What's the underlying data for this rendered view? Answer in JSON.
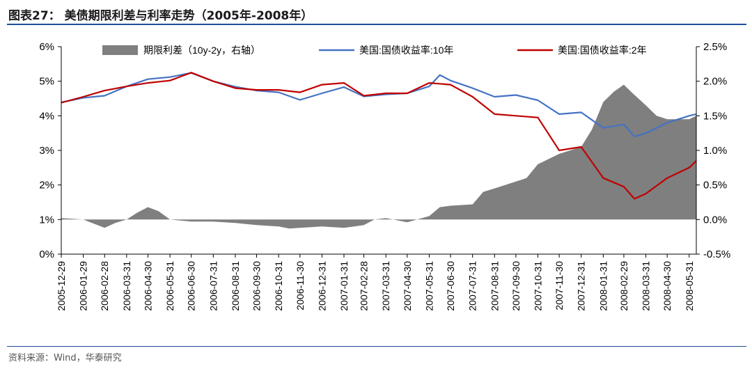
{
  "header": {
    "title": "图表27：  美债期限利差与利率走势（2005年-2008年）"
  },
  "footer": {
    "source": "资料来源：Wind，华泰研究"
  },
  "chart_data": {
    "type": "line",
    "left_axis": {
      "ticks": [
        "0%",
        "1%",
        "2%",
        "3%",
        "4%",
        "5%",
        "6%"
      ],
      "min": 0,
      "max": 6
    },
    "right_axis": {
      "ticks": [
        "-0.5%",
        "0.0%",
        "0.5%",
        "1.0%",
        "1.5%",
        "2.0%",
        "2.5%"
      ],
      "min": -0.5,
      "max": 2.5
    },
    "x_min": "2005-12-29",
    "x_max": "2008-06-10",
    "x_ticks": [
      "2005-12-29",
      "2006-01-29",
      "2006-02-28",
      "2006-03-31",
      "2006-04-30",
      "2006-05-31",
      "2006-06-30",
      "2006-07-31",
      "2006-08-31",
      "2006-09-30",
      "2006-10-31",
      "2006-11-30",
      "2006-12-31",
      "2007-01-31",
      "2007-02-28",
      "2007-03-31",
      "2007-04-30",
      "2007-05-31",
      "2007-06-30",
      "2007-07-31",
      "2007-08-31",
      "2007-09-30",
      "2007-10-31",
      "2007-11-30",
      "2007-12-31",
      "2008-01-31",
      "2008-02-29",
      "2008-03-31",
      "2008-04-30",
      "2008-05-31"
    ],
    "legend_placement": "top",
    "grid": false,
    "series": [
      {
        "name": "期限利差（10y-2y，右轴）",
        "kind": "area",
        "axis": "right",
        "color": "#7f7f7f",
        "x": [
          "2005-12-29",
          "2006-01-29",
          "2006-02-28",
          "2006-03-15",
          "2006-03-31",
          "2006-04-15",
          "2006-04-30",
          "2006-05-15",
          "2006-05-31",
          "2006-06-30",
          "2006-07-31",
          "2006-08-31",
          "2006-09-30",
          "2006-10-31",
          "2006-11-15",
          "2006-11-30",
          "2006-12-31",
          "2007-01-31",
          "2007-02-28",
          "2007-03-15",
          "2007-03-31",
          "2007-04-30",
          "2007-05-31",
          "2007-06-15",
          "2007-06-30",
          "2007-07-31",
          "2007-08-15",
          "2007-08-31",
          "2007-09-30",
          "2007-10-15",
          "2007-10-31",
          "2007-11-30",
          "2007-12-31",
          "2008-01-15",
          "2008-01-31",
          "2008-02-15",
          "2008-02-29",
          "2008-03-10",
          "2008-03-31",
          "2008-04-15",
          "2008-04-30",
          "2008-05-31",
          "2008-06-10"
        ],
        "values": [
          0.02,
          0.0,
          -0.12,
          -0.05,
          0.0,
          0.1,
          0.18,
          0.12,
          0.0,
          -0.03,
          -0.03,
          -0.05,
          -0.08,
          -0.1,
          -0.13,
          -0.12,
          -0.1,
          -0.12,
          -0.08,
          0.0,
          0.02,
          -0.04,
          0.05,
          0.18,
          0.2,
          0.22,
          0.4,
          0.45,
          0.55,
          0.6,
          0.8,
          0.95,
          1.05,
          1.3,
          1.7,
          1.85,
          1.95,
          1.85,
          1.65,
          1.5,
          1.45,
          1.45,
          1.5
        ]
      },
      {
        "name": "美国:国债收益率:10年",
        "kind": "line",
        "axis": "left",
        "color": "#4472c4",
        "x": [
          "2005-12-29",
          "2006-01-29",
          "2006-02-28",
          "2006-03-31",
          "2006-04-30",
          "2006-05-31",
          "2006-06-30",
          "2006-07-31",
          "2006-08-31",
          "2006-09-30",
          "2006-10-31",
          "2006-11-30",
          "2006-12-31",
          "2007-01-31",
          "2007-02-28",
          "2007-03-31",
          "2007-04-30",
          "2007-05-31",
          "2007-06-15",
          "2007-06-30",
          "2007-07-31",
          "2007-08-31",
          "2007-09-30",
          "2007-10-31",
          "2007-11-30",
          "2007-12-31",
          "2008-01-31",
          "2008-02-29",
          "2008-03-15",
          "2008-03-31",
          "2008-04-30",
          "2008-05-31",
          "2008-06-10"
        ],
        "values": [
          4.39,
          4.52,
          4.58,
          4.85,
          5.06,
          5.12,
          5.24,
          5.0,
          4.84,
          4.73,
          4.68,
          4.46,
          4.65,
          4.83,
          4.56,
          4.62,
          4.65,
          4.85,
          5.18,
          5.02,
          4.8,
          4.55,
          4.6,
          4.45,
          4.05,
          4.1,
          3.65,
          3.75,
          3.4,
          3.5,
          3.8,
          4.0,
          4.05
        ]
      },
      {
        "name": "美国:国债收益率:2年",
        "kind": "line",
        "axis": "left",
        "color": "#c00000",
        "x": [
          "2005-12-29",
          "2006-01-29",
          "2006-02-28",
          "2006-03-31",
          "2006-04-30",
          "2006-05-31",
          "2006-06-30",
          "2006-07-31",
          "2006-08-31",
          "2006-09-30",
          "2006-10-31",
          "2006-11-30",
          "2006-12-31",
          "2007-01-31",
          "2007-02-28",
          "2007-03-31",
          "2007-04-30",
          "2007-05-31",
          "2007-06-30",
          "2007-07-31",
          "2007-08-31",
          "2007-09-30",
          "2007-10-31",
          "2007-11-30",
          "2007-12-31",
          "2008-01-31",
          "2008-02-29",
          "2008-03-15",
          "2008-03-31",
          "2008-04-30",
          "2008-05-31",
          "2008-06-10"
        ],
        "values": [
          4.38,
          4.55,
          4.73,
          4.85,
          4.95,
          5.02,
          5.25,
          5.0,
          4.8,
          4.75,
          4.75,
          4.68,
          4.9,
          4.95,
          4.58,
          4.65,
          4.65,
          4.95,
          4.9,
          4.55,
          4.05,
          4.0,
          3.95,
          3.0,
          3.1,
          2.2,
          1.95,
          1.6,
          1.75,
          2.2,
          2.5,
          2.7
        ]
      }
    ]
  }
}
